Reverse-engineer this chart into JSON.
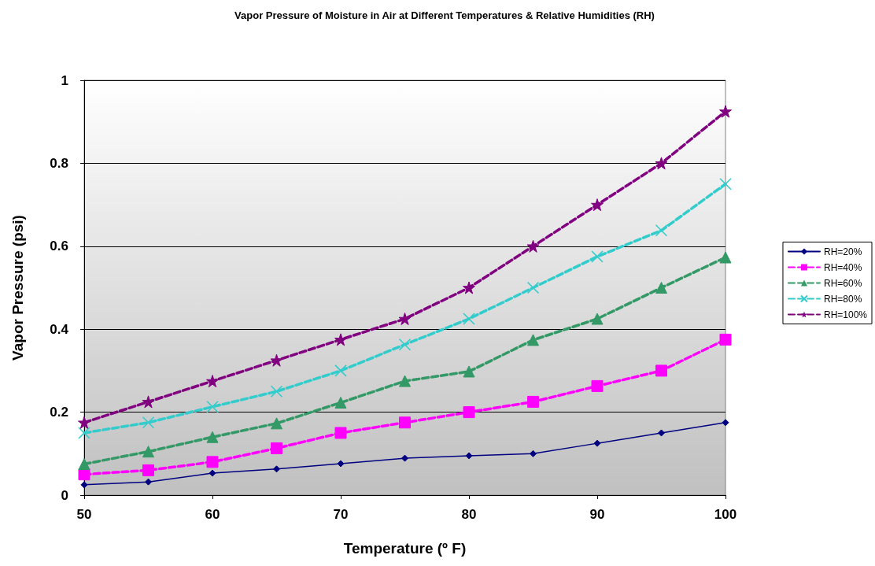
{
  "chart_data": {
    "type": "line",
    "title": "Vapor Pressure of Moisture in Air at Different Temperatures & Relative Humidities (RH)",
    "xlabel": "Temperature (º F)",
    "ylabel": "Vapor Pressure (psi)",
    "x": [
      50,
      55,
      60,
      65,
      70,
      75,
      80,
      85,
      90,
      95,
      100
    ],
    "series": [
      {
        "name": "RH=20%",
        "color": "#000080",
        "marker": "diamond",
        "line_style": "solid",
        "values": [
          0.025,
          0.032,
          0.053,
          0.063,
          0.076,
          0.089,
          0.095,
          0.1,
          0.125,
          0.15,
          0.175
        ]
      },
      {
        "name": "RH=40%",
        "color": "#ff00ff",
        "marker": "square",
        "line_style": "dashed",
        "values": [
          0.05,
          0.06,
          0.08,
          0.113,
          0.15,
          0.175,
          0.2,
          0.225,
          0.263,
          0.3,
          0.375
        ]
      },
      {
        "name": "RH=60%",
        "color": "#339966",
        "marker": "triangle",
        "line_style": "dashed",
        "values": [
          0.075,
          0.105,
          0.14,
          0.173,
          0.223,
          0.275,
          0.298,
          0.374,
          0.425,
          0.5,
          0.573
        ]
      },
      {
        "name": "RH=80%",
        "color": "#33cccc",
        "marker": "cross",
        "line_style": "dashed",
        "values": [
          0.15,
          0.175,
          0.213,
          0.25,
          0.3,
          0.363,
          0.425,
          0.5,
          0.575,
          0.638,
          0.75
        ]
      },
      {
        "name": "RH=100%",
        "color": "#800080",
        "marker": "star",
        "line_style": "dashed",
        "values": [
          0.175,
          0.225,
          0.275,
          0.325,
          0.375,
          0.425,
          0.5,
          0.6,
          0.7,
          0.8,
          0.925
        ]
      }
    ],
    "xlim": [
      50,
      100
    ],
    "xticks": [
      50,
      60,
      70,
      80,
      90,
      100
    ],
    "ylim": [
      0,
      1
    ],
    "yticks": [
      0,
      0.2,
      0.4,
      0.6,
      0.8,
      1
    ],
    "grid": "y",
    "legend": "right"
  }
}
